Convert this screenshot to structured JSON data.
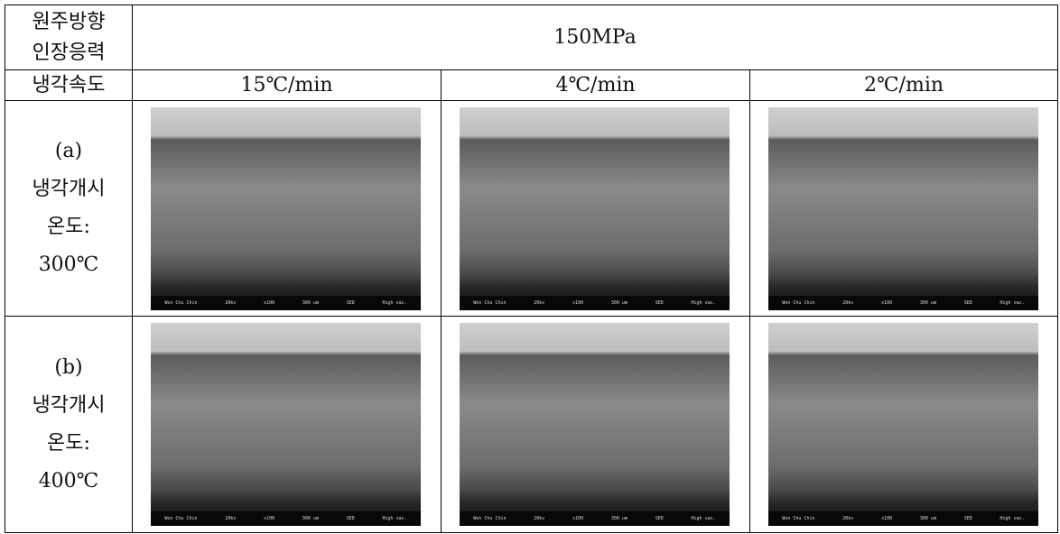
{
  "header": {
    "label_lines": [
      "원주방향",
      "인장응력"
    ],
    "stress": "150MPa"
  },
  "rate_row": {
    "label": "냉각속도",
    "rates": [
      "15℃/min",
      "4℃/min",
      "2℃/min"
    ]
  },
  "rows": [
    {
      "label_lines": [
        "(a)",
        "냉각개시",
        "온도:",
        "300℃"
      ]
    },
    {
      "label_lines": [
        "(b)",
        "냉각개시",
        "온도:",
        "400℃"
      ]
    }
  ],
  "micrograph_info": [
    "Won Chu Chin",
    "20kv",
    "x100",
    "300 um",
    "SED",
    "High vac."
  ]
}
